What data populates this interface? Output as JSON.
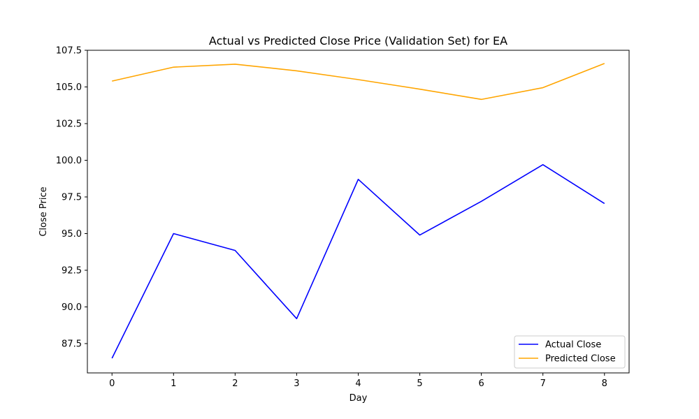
{
  "chart_data": {
    "type": "line",
    "title": "Actual vs Predicted Close Price (Validation Set) for EA",
    "xlabel": "Day",
    "ylabel": "Close Price",
    "x": [
      0,
      1,
      2,
      3,
      4,
      5,
      6,
      7,
      8
    ],
    "xlim": [
      -0.4,
      8.4
    ],
    "ylim": [
      85.5,
      107.5
    ],
    "x_ticks": [
      "0",
      "1",
      "2",
      "3",
      "4",
      "5",
      "6",
      "7",
      "8"
    ],
    "y_ticks": [
      "87.5",
      "90.0",
      "92.5",
      "95.0",
      "97.5",
      "100.0",
      "102.5",
      "105.0",
      "107.5"
    ],
    "grid": false,
    "legend_position": "lower-right",
    "series": [
      {
        "name": "Actual Close",
        "color": "#0000ff",
        "values": [
          86.5,
          95.0,
          93.85,
          89.2,
          98.7,
          94.9,
          97.2,
          99.7,
          97.05
        ]
      },
      {
        "name": "Predicted Close",
        "color": "#ffa500",
        "values": [
          105.4,
          106.35,
          106.55,
          106.1,
          105.5,
          104.85,
          104.15,
          104.95,
          106.6
        ]
      }
    ]
  }
}
